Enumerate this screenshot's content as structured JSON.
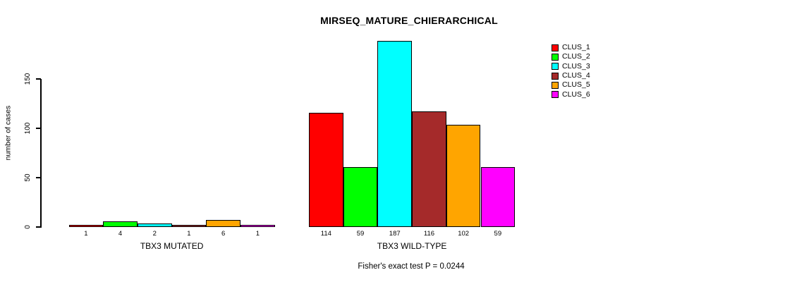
{
  "chart_data": {
    "type": "bar",
    "title": "MIRSEQ_MATURE_CHIERARCHICAL",
    "ylabel": "number of cases",
    "xlabel": "",
    "ylim": [
      0,
      150
    ],
    "yticks": [
      0,
      50,
      100,
      150
    ],
    "grid": false,
    "legend_position": "top-right",
    "categories": [
      "TBX3 MUTATED",
      "TBX3 WILD-TYPE"
    ],
    "series": [
      {
        "name": "CLUS_1",
        "color": "#FF0000",
        "values": [
          1,
          114
        ]
      },
      {
        "name": "CLUS_2",
        "color": "#00FF00",
        "values": [
          4,
          59
        ]
      },
      {
        "name": "CLUS_3",
        "color": "#00FFFF",
        "values": [
          2,
          187
        ]
      },
      {
        "name": "CLUS_4",
        "color": "#A52A2A",
        "values": [
          1,
          116
        ]
      },
      {
        "name": "CLUS_5",
        "color": "#FFA500",
        "values": [
          6,
          102
        ]
      },
      {
        "name": "CLUS_6",
        "color": "#FF00FF",
        "values": [
          1,
          59
        ]
      }
    ],
    "bar_value_labels": [
      [
        "1",
        "4",
        "2",
        "1",
        "6",
        "1"
      ],
      [
        "114",
        "59",
        "187",
        "116",
        "102",
        "59"
      ]
    ],
    "annotation": "Fisher's exact test P = 0.0244",
    "colors": {
      "background": "#FFFFFF",
      "axis": "#000000",
      "text": "#000000"
    }
  }
}
